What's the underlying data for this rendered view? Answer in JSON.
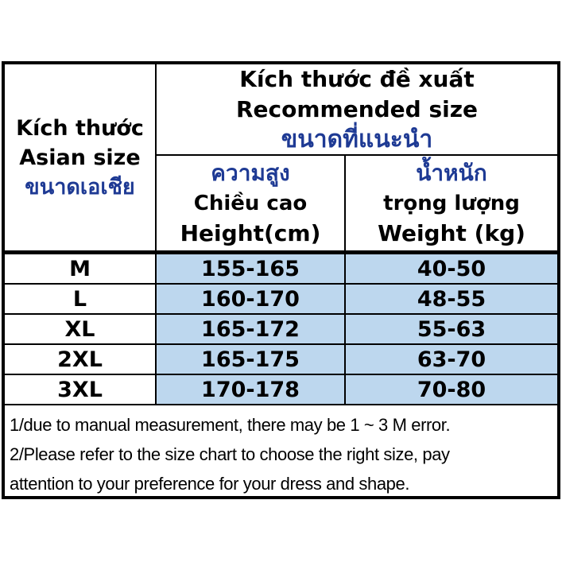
{
  "colors": {
    "accent_blue": "#1E3A94",
    "cell_blue": "#BDD7EE",
    "border_black": "#000000",
    "background": "#FFFFFF"
  },
  "table": {
    "corner_header": {
      "vi": "Kích thước",
      "en": "Asian size",
      "th": "ขนาดเอเชีย"
    },
    "recommended_header": {
      "vi": "Kích thước đề xuất",
      "en": "Recommended size",
      "th": "ขนาดที่แนะนำ"
    },
    "height_header": {
      "th": "ความสูง",
      "vi": "Chiều cao",
      "en": "Height(cm)"
    },
    "weight_header": {
      "th": "น้ำหนัก",
      "vi": "trọng lượng",
      "en": "Weight (kg)"
    },
    "rows": [
      {
        "size": "M",
        "height": "155-165",
        "weight": "40-50"
      },
      {
        "size": "L",
        "height": "160-170",
        "weight": "48-55"
      },
      {
        "size": "XL",
        "height": "165-172",
        "weight": "55-63"
      },
      {
        "size": "2XL",
        "height": "165-175",
        "weight": "63-70"
      },
      {
        "size": "3XL",
        "height": "170-178",
        "weight": "70-80"
      }
    ],
    "notes": [
      "1/due to manual measurement, there may be 1 ~ 3 M error.",
      "2/Please refer to the size chart to choose the right size, pay",
      "attention to your preference for your dress and shape."
    ]
  }
}
